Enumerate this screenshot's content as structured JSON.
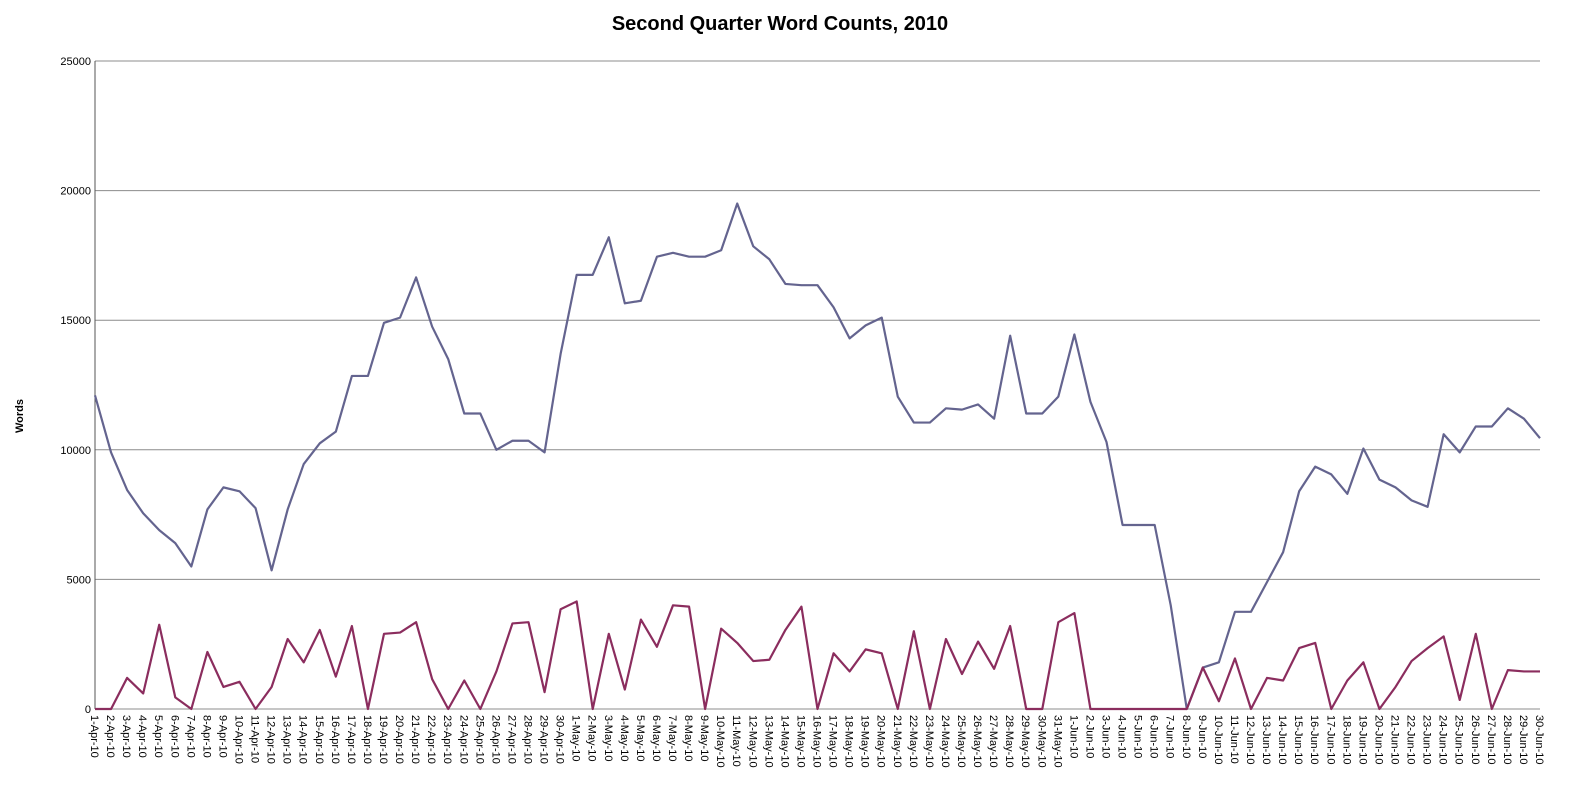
{
  "chart_data": {
    "type": "line",
    "title": "Second Quarter Word Counts, 2010",
    "y_label": "Words",
    "categories": [
      "1-Apr-10",
      "2-Apr-10",
      "3-Apr-10",
      "4-Apr-10",
      "5-Apr-10",
      "6-Apr-10",
      "7-Apr-10",
      "8-Apr-10",
      "9-Apr-10",
      "10-Apr-10",
      "11-Apr-10",
      "12-Apr-10",
      "13-Apr-10",
      "14-Apr-10",
      "15-Apr-10",
      "16-Apr-10",
      "17-Apr-10",
      "18-Apr-10",
      "19-Apr-10",
      "20-Apr-10",
      "21-Apr-10",
      "22-Apr-10",
      "23-Apr-10",
      "24-Apr-10",
      "25-Apr-10",
      "26-Apr-10",
      "27-Apr-10",
      "28-Apr-10",
      "29-Apr-10",
      "30-Apr-10",
      "1-May-10",
      "2-May-10",
      "3-May-10",
      "4-May-10",
      "5-May-10",
      "6-May-10",
      "7-May-10",
      "8-May-10",
      "9-May-10",
      "10-May-10",
      "11-May-10",
      "12-May-10",
      "13-May-10",
      "14-May-10",
      "15-May-10",
      "16-May-10",
      "17-May-10",
      "18-May-10",
      "19-May-10",
      "20-May-10",
      "21-May-10",
      "22-May-10",
      "23-May-10",
      "24-May-10",
      "25-May-10",
      "26-May-10",
      "27-May-10",
      "28-May-10",
      "29-May-10",
      "30-May-10",
      "31-May-10",
      "1-Jun-10",
      "2-Jun-10",
      "3-Jun-10",
      "4-Jun-10",
      "5-Jun-10",
      "6-Jun-10",
      "7-Jun-10",
      "8-Jun-10",
      "9-Jun-10",
      "10-Jun-10",
      "11-Jun-10",
      "12-Jun-10",
      "13-Jun-10",
      "14-Jun-10",
      "15-Jun-10",
      "16-Jun-10",
      "17-Jun-10",
      "18-Jun-10",
      "19-Jun-10",
      "20-Jun-10",
      "21-Jun-10",
      "22-Jun-10",
      "23-Jun-10",
      "24-Jun-10",
      "25-Jun-10",
      "26-Jun-10",
      "27-Jun-10",
      "28-Jun-10",
      "29-Jun-10",
      "30-Jun-10"
    ],
    "series": [
      {
        "color": "#64648f",
        "values": [
          12100,
          9900,
          8450,
          7550,
          6900,
          6400,
          5500,
          7700,
          8550,
          8400,
          7750,
          5350,
          7700,
          9450,
          10250,
          10700,
          12850,
          12850,
          14900,
          15100,
          16650,
          14750,
          13500,
          11400,
          11400,
          10000,
          10350,
          10350,
          9900,
          13700,
          16750,
          16750,
          18200,
          15650,
          15750,
          17450,
          17600,
          17450,
          17450,
          17700,
          19500,
          17850,
          17350,
          16400,
          16350,
          16350,
          15500,
          14300,
          14800,
          15100,
          12050,
          11050,
          11050,
          11600,
          11550,
          11750,
          11200,
          14400,
          11400,
          11400,
          12050,
          14450,
          11850,
          10300,
          7100,
          7100,
          7100,
          4000,
          0,
          1600,
          1800,
          3750,
          3750,
          4900,
          6050,
          8400,
          9350,
          9050,
          8300,
          10050,
          8850,
          8550,
          8050,
          7800,
          10600,
          9900,
          10900,
          10900,
          11600,
          11200,
          10450
        ]
      },
      {
        "color": "#8b2d5e",
        "values": [
          0,
          0,
          1200,
          600,
          3250,
          450,
          0,
          2200,
          850,
          1050,
          0,
          850,
          2700,
          1800,
          3050,
          1250,
          3200,
          0,
          2900,
          2950,
          3350,
          1150,
          0,
          1100,
          0,
          1450,
          3300,
          3350,
          650,
          3850,
          4150,
          0,
          2900,
          750,
          3450,
          2400,
          4000,
          3950,
          0,
          3100,
          2550,
          1850,
          1900,
          3050,
          3950,
          0,
          2150,
          1450,
          2300,
          2150,
          0,
          3000,
          0,
          2700,
          1350,
          2600,
          1550,
          3200,
          0,
          0,
          3350,
          3700,
          0,
          0,
          0,
          0,
          0,
          0,
          0,
          1600,
          300,
          1950,
          0,
          1200,
          1100,
          2350,
          2550,
          0,
          1100,
          1800,
          0,
          850,
          1850,
          2350,
          2800,
          350,
          2900,
          0,
          1500,
          1450,
          1450
        ]
      }
    ],
    "ylim": [
      0,
      25000
    ],
    "yticks": [
      0,
      5000,
      10000,
      15000,
      20000,
      25000
    ],
    "grid": true
  }
}
